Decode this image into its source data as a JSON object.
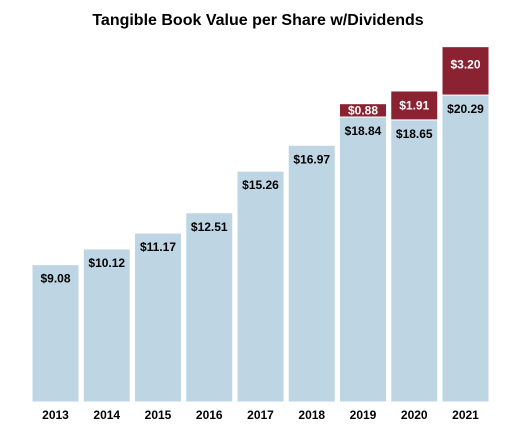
{
  "chart_data": {
    "type": "bar",
    "stacked": true,
    "title": "Tangible Book Value per Share w/Dividends",
    "xlabel": "",
    "ylabel": "",
    "categories": [
      "2013",
      "2014",
      "2015",
      "2016",
      "2017",
      "2018",
      "2019",
      "2020",
      "2021"
    ],
    "series": [
      {
        "color": "#bed5e4",
        "label_color": "#000000",
        "values": [
          9.08,
          10.12,
          11.17,
          12.51,
          15.26,
          16.97,
          18.84,
          18.65,
          20.29
        ],
        "value_labels": [
          "$9.08",
          "$10.12",
          "$11.17",
          "$12.51",
          "$15.26",
          "$16.97",
          "$18.84",
          "$18.65",
          "$20.29"
        ]
      },
      {
        "color": "#8a2232",
        "label_color": "#ffffff",
        "values": [
          null,
          null,
          null,
          null,
          null,
          null,
          0.88,
          1.91,
          3.2
        ],
        "value_labels": [
          "",
          "",
          "",
          "",
          "",
          "",
          "$0.88",
          "$1.91",
          "$3.20"
        ]
      }
    ],
    "ylim": [
      0,
      23.6
    ],
    "y_axis_visible": false,
    "grid": false,
    "legend": "none"
  }
}
